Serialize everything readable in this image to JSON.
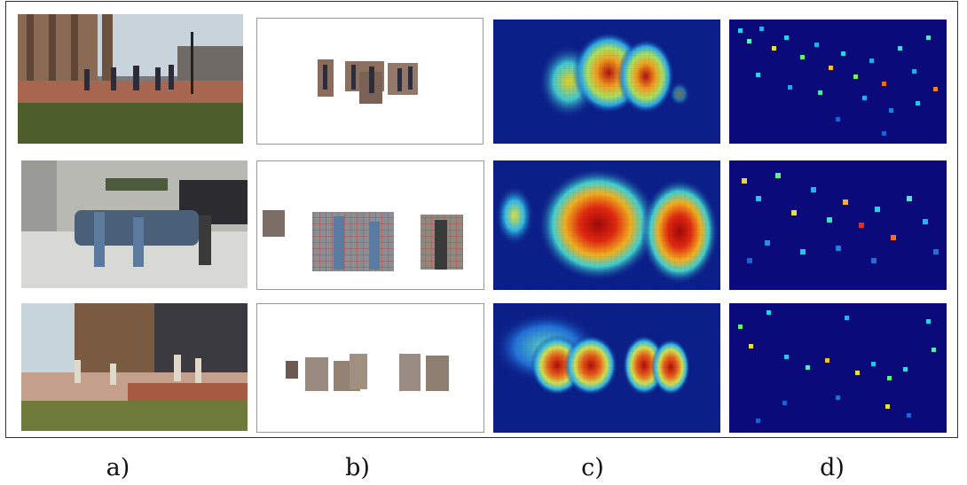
{
  "figure": {
    "labels": [
      "a)",
      "b)",
      "c)",
      "d)"
    ]
  },
  "colors": {
    "heat_low": "#0b1f8a",
    "heat_mid": "#21c8e0",
    "heat_high": "#c81410",
    "sparse_bg": "#0a0a7a"
  },
  "rows": [
    {
      "scene": "campus-walkway-people-running"
    },
    {
      "scene": "street-people-standing-near-truck"
    },
    {
      "scene": "building-plaza-people-walking"
    }
  ]
}
